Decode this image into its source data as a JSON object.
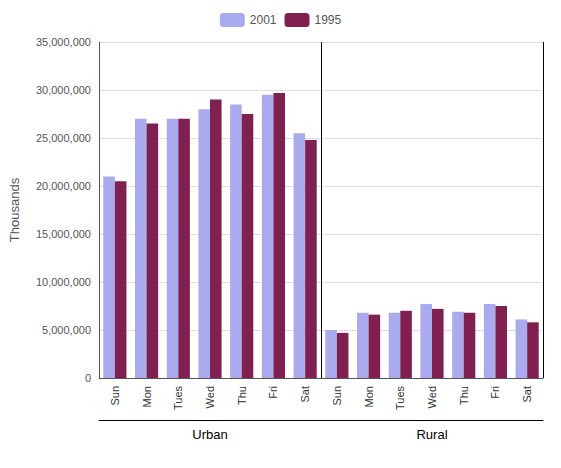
{
  "chart_data": {
    "type": "bar",
    "categories": [
      "Sun",
      "Mon",
      "Tues",
      "Wed",
      "Thu",
      "Fri",
      "Sat",
      "Sun",
      "Mon",
      "Tues",
      "Wed",
      "Thu",
      "Fri",
      "Sat"
    ],
    "series": [
      {
        "name": "2001",
        "color": "#aaaaee",
        "values": [
          21000000,
          27000000,
          27000000,
          28000000,
          28500000,
          29500000,
          25500000,
          5000000,
          6800000,
          6800000,
          7700000,
          6900000,
          7700000,
          6100000
        ]
      },
      {
        "name": "1995",
        "color": "#802050",
        "values": [
          20500000,
          26500000,
          27000000,
          29000000,
          27500000,
          29700000,
          24800000,
          4700000,
          6600000,
          7000000,
          7200000,
          6800000,
          7500000,
          5800000
        ]
      }
    ],
    "annotations": [
      "Urban",
      "Rural"
    ],
    "y_label": "Thousands",
    "ylim": [
      0,
      35000000
    ],
    "yticks": [
      0,
      {
        "value": 5000000,
        "label": "5,000,000"
      },
      {
        "value": 10000000,
        "label": "10,000,000"
      },
      {
        "value": 15000000,
        "label": "15,000,000"
      },
      {
        "value": 20000000,
        "label": "20,000,000"
      },
      {
        "value": 25000000,
        "label": "25,000,000"
      },
      {
        "value": 30000000,
        "label": "30,000,000"
      },
      {
        "value": 35000000,
        "label": "35,000,000"
      }
    ],
    "grid": true,
    "legend": "top"
  }
}
